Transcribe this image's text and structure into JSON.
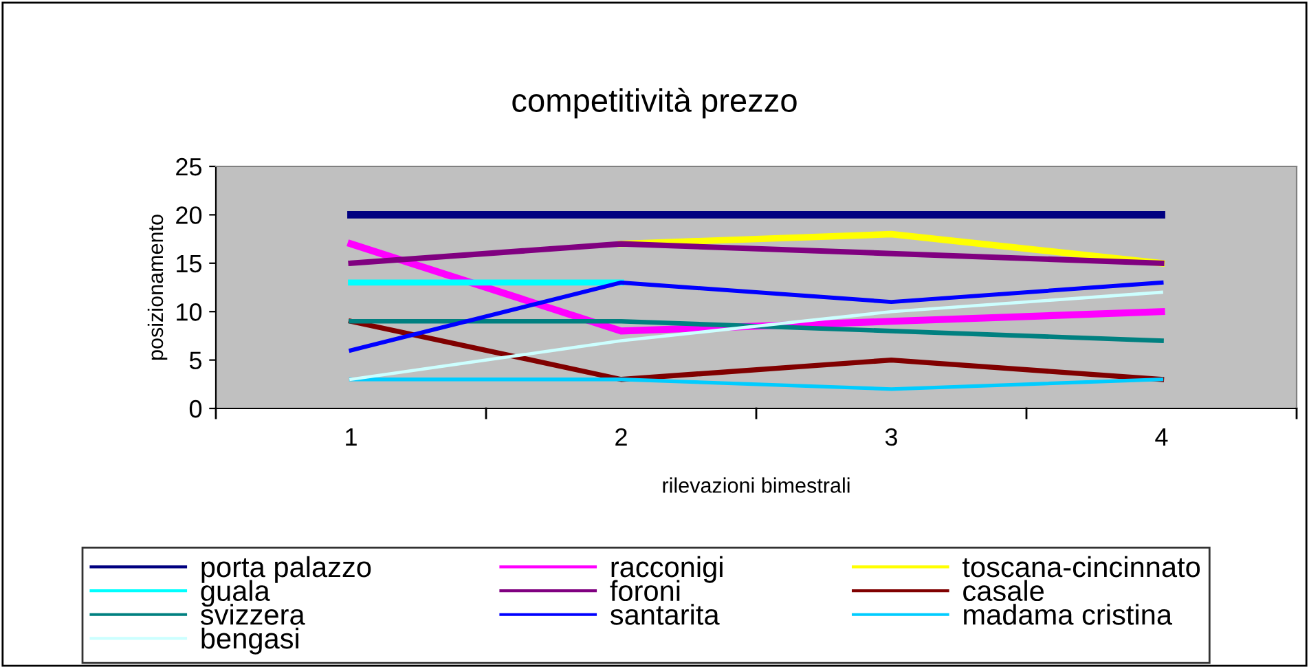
{
  "chart_data": {
    "type": "line",
    "title": "competitività prezzo",
    "xlabel": "rilevazioni bimestrali",
    "ylabel": "posizionamento",
    "categories": [
      "1",
      "2",
      "3",
      "4"
    ],
    "ylim": [
      0,
      25
    ],
    "yticks": [
      0,
      5,
      10,
      15,
      20,
      25
    ],
    "grid": false,
    "legend": "bottom",
    "marker": "none",
    "series": [
      {
        "name": "porta palazzo",
        "color": "#000080",
        "values": [
          20,
          20,
          20,
          20
        ]
      },
      {
        "name": "racconigi",
        "color": "#ff00ff",
        "values": [
          17,
          8,
          9,
          10
        ]
      },
      {
        "name": "toscana-cincinnato",
        "color": "#ffff00",
        "values": [
          null,
          17,
          18,
          15
        ]
      },
      {
        "name": "guala",
        "color": "#00ffff",
        "values": [
          13,
          13,
          null,
          null
        ]
      },
      {
        "name": "foroni",
        "color": "#800080",
        "values": [
          15,
          17,
          16,
          15
        ]
      },
      {
        "name": "casale",
        "color": "#800000",
        "values": [
          9,
          3,
          5,
          3
        ]
      },
      {
        "name": "svizzera",
        "color": "#008080",
        "values": [
          9,
          9,
          8,
          7
        ]
      },
      {
        "name": "santarita",
        "color": "#0000ff",
        "values": [
          6,
          13,
          11,
          13
        ]
      },
      {
        "name": "madama cristina",
        "color": "#00ccff",
        "values": [
          3,
          3,
          2,
          3
        ]
      },
      {
        "name": "bengasi",
        "color": "#ccffff",
        "values": [
          3,
          7,
          10,
          12
        ]
      }
    ]
  }
}
